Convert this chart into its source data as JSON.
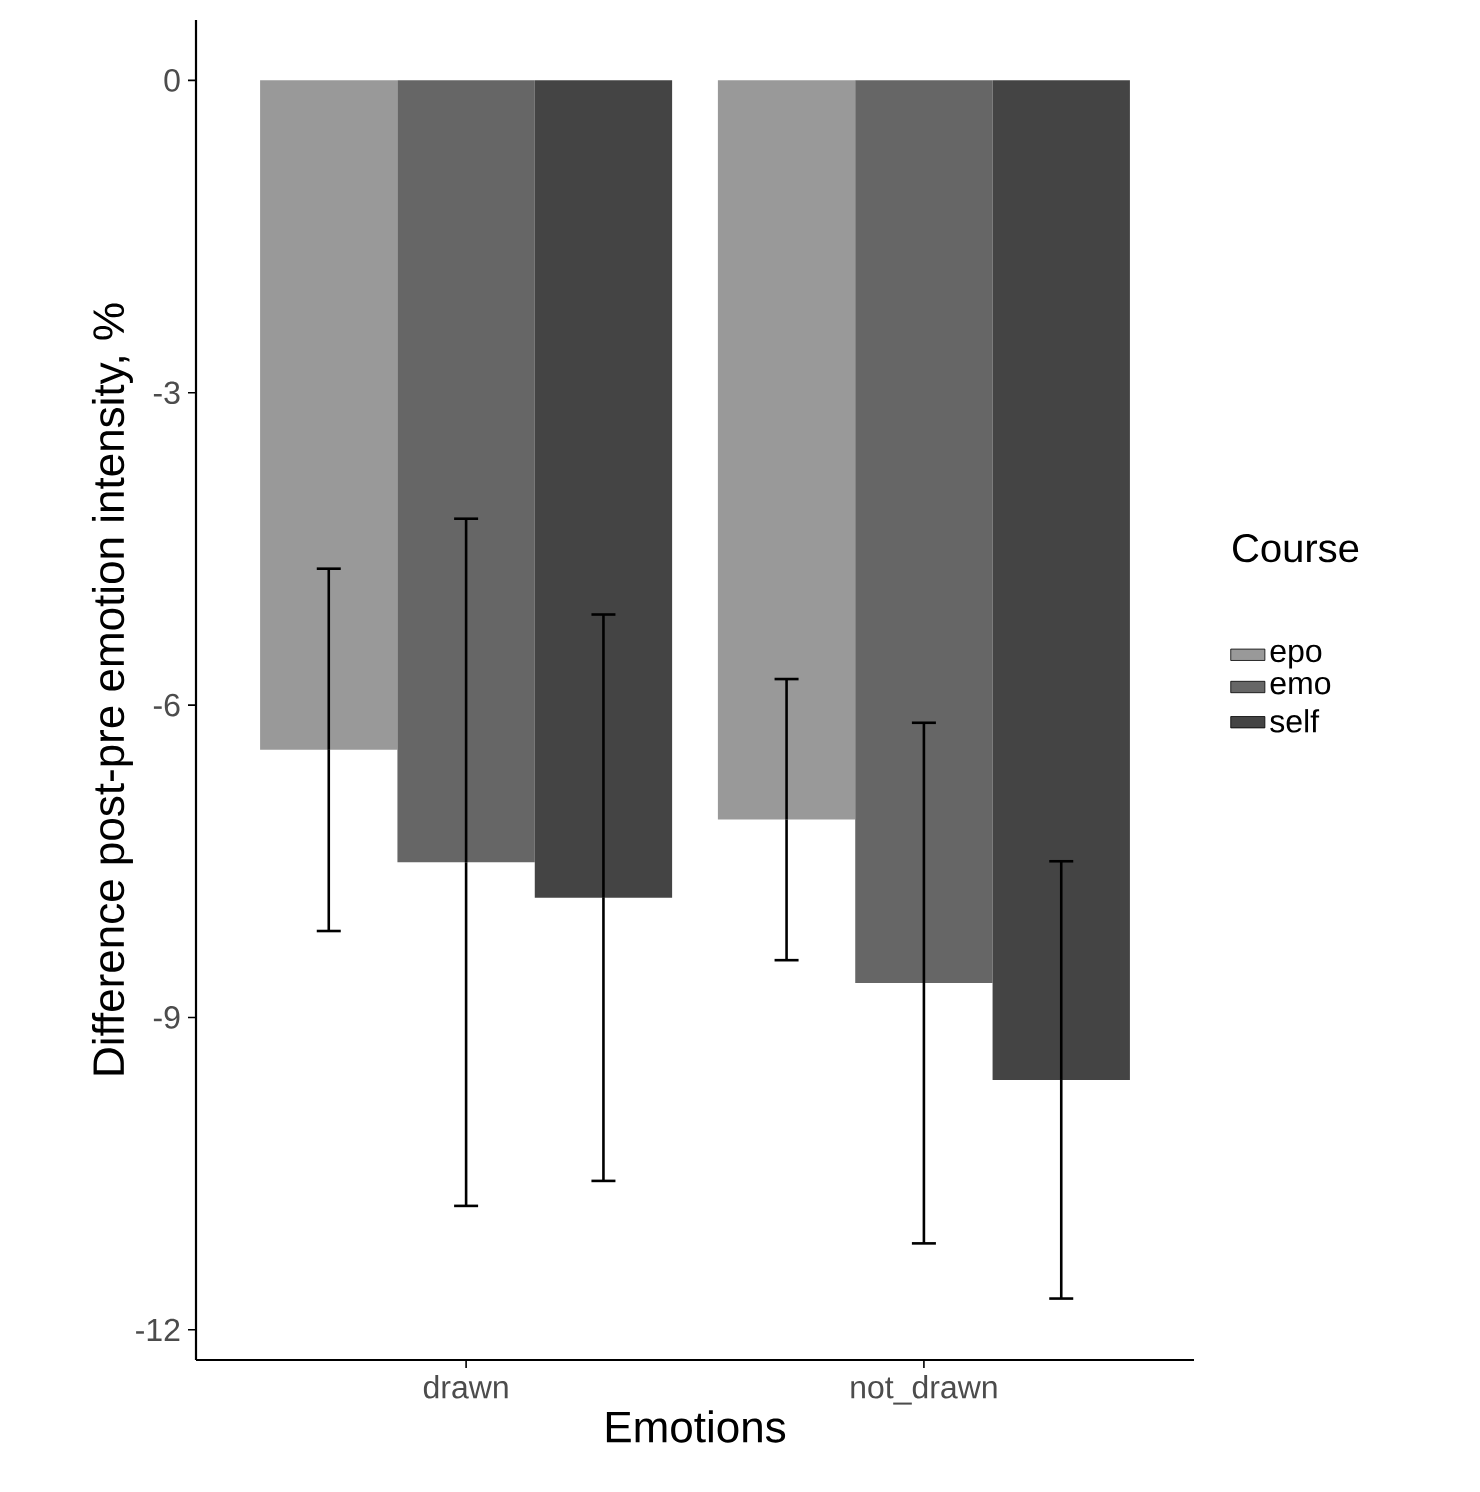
{
  "chart_data": {
    "type": "bar",
    "xlabel": "Emotions",
    "ylabel": "Difference post-pre emotion intensity, %",
    "legend_title": "Course",
    "categories": [
      "drawn",
      "not_drawn"
    ],
    "series": [
      {
        "name": "epo",
        "color": "#999999",
        "values": [
          -6.43,
          -7.1
        ],
        "errors": [
          1.74,
          1.35
        ]
      },
      {
        "name": "emo",
        "color": "#666666",
        "values": [
          -7.51,
          -8.67
        ],
        "errors": [
          3.3,
          2.5
        ]
      },
      {
        "name": "self",
        "color": "#444444",
        "values": [
          -7.85,
          -9.6
        ],
        "errors": [
          2.72,
          2.1
        ]
      }
    ],
    "ylim": [
      -12.29,
      0.58
    ],
    "yticks": [
      -12,
      -9,
      -6,
      -3,
      0
    ],
    "grid": false,
    "legend": "right"
  }
}
